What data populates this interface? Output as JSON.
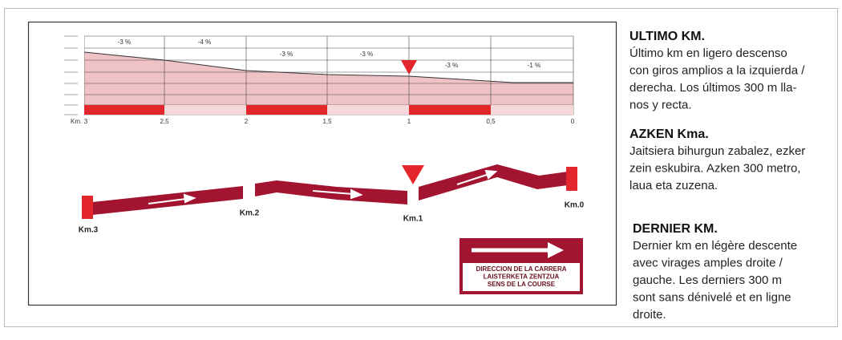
{
  "profile": {
    "gradients": [
      "-3 %",
      "-4 %",
      "-3 %",
      "-3 %",
      "-3 %",
      "-1 %"
    ],
    "km_prefix": "Km.",
    "km_labels": [
      "3",
      "2,5",
      "2",
      "1,5",
      "1",
      "0,5",
      "0"
    ]
  },
  "map": {
    "labels": [
      "Km.3",
      "Km.2",
      "Km.1",
      "Km.0"
    ]
  },
  "legend": {
    "lines": [
      "DIRECCION DE LA CARRERA",
      "LAISTERKETA ZENTZUA",
      "SENS DE LA COURSE"
    ]
  },
  "sections": [
    {
      "title": "ULTIMO KM.",
      "lines": [
        "Último km en ligero descenso",
        "con giros amplios a la izquierda /",
        "derecha. Los últimos 300 m lla-",
        "nos y recta."
      ]
    },
    {
      "title": "AZKEN Kma.",
      "lines": [
        "Jaitsiera bihurgun zabalez, ezker",
        "zein eskubira. Azken 300 metro,",
        "laua eta zuzena."
      ]
    },
    {
      "title": "DERNIER KM.",
      "lines": [
        "Dernier km en légère descente",
        "avec virages amples droite /",
        "gauche. Les derniers 300 m",
        "sont sans dénivelé et en ligne",
        "droite."
      ]
    }
  ]
}
